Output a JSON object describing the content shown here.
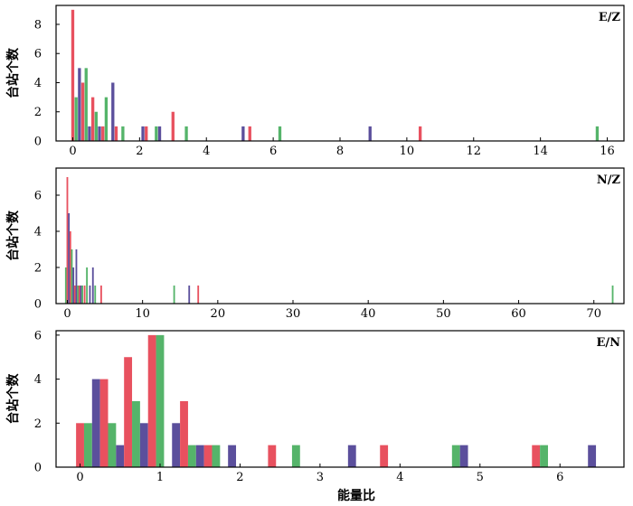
{
  "chart_data": {
    "type": "bar",
    "colors": {
      "red": "#E8515F",
      "green": "#55B46A",
      "purple": "#5B4F9C"
    },
    "shared_xlabel": "能量比",
    "panels": [
      {
        "id": "EZ",
        "tag": "E/Z",
        "ylabel": "台站个数",
        "xlim": [
          -0.5,
          16.5
        ],
        "ylim": [
          0,
          9.3
        ],
        "xticks": [
          0,
          2,
          4,
          6,
          8,
          10,
          12,
          14,
          16
        ],
        "yticks": [
          0,
          2,
          4,
          6,
          8
        ],
        "bar_width": 0.09,
        "bars": [
          {
            "x": 0.0,
            "y": 9,
            "series": "red"
          },
          {
            "x": 0.1,
            "y": 3,
            "series": "green"
          },
          {
            "x": 0.2,
            "y": 5,
            "series": "purple"
          },
          {
            "x": 0.3,
            "y": 4,
            "series": "red"
          },
          {
            "x": 0.4,
            "y": 5,
            "series": "green"
          },
          {
            "x": 0.5,
            "y": 1,
            "series": "purple"
          },
          {
            "x": 0.6,
            "y": 3,
            "series": "red"
          },
          {
            "x": 0.7,
            "y": 2,
            "series": "green"
          },
          {
            "x": 0.8,
            "y": 1,
            "series": "purple"
          },
          {
            "x": 0.9,
            "y": 1,
            "series": "red"
          },
          {
            "x": 1.0,
            "y": 3,
            "series": "green"
          },
          {
            "x": 1.2,
            "y": 4,
            "series": "purple"
          },
          {
            "x": 1.3,
            "y": 1,
            "series": "red"
          },
          {
            "x": 1.5,
            "y": 1,
            "series": "green"
          },
          {
            "x": 2.1,
            "y": 1,
            "series": "purple"
          },
          {
            "x": 2.2,
            "y": 1,
            "series": "red"
          },
          {
            "x": 2.5,
            "y": 1,
            "series": "green"
          },
          {
            "x": 2.6,
            "y": 1,
            "series": "purple"
          },
          {
            "x": 3.0,
            "y": 2,
            "series": "red"
          },
          {
            "x": 3.4,
            "y": 1,
            "series": "green"
          },
          {
            "x": 5.1,
            "y": 1,
            "series": "purple"
          },
          {
            "x": 5.3,
            "y": 1,
            "series": "red"
          },
          {
            "x": 6.2,
            "y": 1,
            "series": "green"
          },
          {
            "x": 8.9,
            "y": 1,
            "series": "purple"
          },
          {
            "x": 10.4,
            "y": 1,
            "series": "red"
          },
          {
            "x": 15.7,
            "y": 1,
            "series": "green"
          }
        ]
      },
      {
        "id": "NZ",
        "tag": "N/Z",
        "ylabel": "台站个数",
        "xlim": [
          -1.5,
          74
        ],
        "ylim": [
          0,
          7.5
        ],
        "xticks": [
          0,
          10,
          20,
          30,
          40,
          50,
          60,
          70
        ],
        "yticks": [
          0,
          2,
          4,
          6
        ],
        "bar_width": 0.22,
        "bars": [
          {
            "x": -0.2,
            "y": 2,
            "series": "green"
          },
          {
            "x": 0.0,
            "y": 7,
            "series": "red"
          },
          {
            "x": 0.2,
            "y": 5,
            "series": "purple"
          },
          {
            "x": 0.4,
            "y": 4,
            "series": "red"
          },
          {
            "x": 0.6,
            "y": 3,
            "series": "green"
          },
          {
            "x": 0.8,
            "y": 2,
            "series": "purple"
          },
          {
            "x": 1.0,
            "y": 1,
            "series": "red"
          },
          {
            "x": 1.2,
            "y": 3,
            "series": "purple"
          },
          {
            "x": 1.4,
            "y": 1,
            "series": "green"
          },
          {
            "x": 1.6,
            "y": 1,
            "series": "red"
          },
          {
            "x": 1.8,
            "y": 1,
            "series": "purple"
          },
          {
            "x": 2.0,
            "y": 1,
            "series": "green"
          },
          {
            "x": 2.3,
            "y": 1,
            "series": "red"
          },
          {
            "x": 2.6,
            "y": 2,
            "series": "green"
          },
          {
            "x": 3.0,
            "y": 1,
            "series": "purple"
          },
          {
            "x": 3.4,
            "y": 2,
            "series": "purple"
          },
          {
            "x": 3.7,
            "y": 1,
            "series": "green"
          },
          {
            "x": 4.5,
            "y": 1,
            "series": "red"
          },
          {
            "x": 14.2,
            "y": 1,
            "series": "green"
          },
          {
            "x": 16.2,
            "y": 1,
            "series": "purple"
          },
          {
            "x": 17.4,
            "y": 1,
            "series": "red"
          },
          {
            "x": 72.5,
            "y": 1,
            "series": "green"
          }
        ]
      },
      {
        "id": "EN",
        "tag": "E/N",
        "ylabel": "台站个数",
        "xlim": [
          -0.3,
          6.8
        ],
        "ylim": [
          0,
          6.2
        ],
        "xticks": [
          0,
          1,
          2,
          3,
          4,
          5,
          6
        ],
        "yticks": [
          0,
          2,
          4,
          6
        ],
        "bar_width": 0.1,
        "bars": [
          {
            "x": 0.0,
            "y": 2,
            "series": "red"
          },
          {
            "x": 0.1,
            "y": 2,
            "series": "green"
          },
          {
            "x": 0.2,
            "y": 4,
            "series": "purple"
          },
          {
            "x": 0.3,
            "y": 4,
            "series": "red"
          },
          {
            "x": 0.4,
            "y": 2,
            "series": "green"
          },
          {
            "x": 0.5,
            "y": 1,
            "series": "purple"
          },
          {
            "x": 0.6,
            "y": 5,
            "series": "red"
          },
          {
            "x": 0.7,
            "y": 3,
            "series": "green"
          },
          {
            "x": 0.8,
            "y": 2,
            "series": "purple"
          },
          {
            "x": 0.9,
            "y": 6,
            "series": "red"
          },
          {
            "x": 1.0,
            "y": 6,
            "series": "green"
          },
          {
            "x": 1.2,
            "y": 2,
            "series": "purple"
          },
          {
            "x": 1.3,
            "y": 3,
            "series": "red"
          },
          {
            "x": 1.4,
            "y": 1,
            "series": "green"
          },
          {
            "x": 1.5,
            "y": 1,
            "series": "purple"
          },
          {
            "x": 1.6,
            "y": 1,
            "series": "red"
          },
          {
            "x": 1.7,
            "y": 1,
            "series": "green"
          },
          {
            "x": 1.9,
            "y": 1,
            "series": "purple"
          },
          {
            "x": 2.4,
            "y": 1,
            "series": "red"
          },
          {
            "x": 2.7,
            "y": 1,
            "series": "green"
          },
          {
            "x": 3.4,
            "y": 1,
            "series": "purple"
          },
          {
            "x": 3.8,
            "y": 1,
            "series": "red"
          },
          {
            "x": 4.7,
            "y": 1,
            "series": "green"
          },
          {
            "x": 4.8,
            "y": 1,
            "series": "purple"
          },
          {
            "x": 5.7,
            "y": 1,
            "series": "red"
          },
          {
            "x": 5.8,
            "y": 1,
            "series": "green"
          },
          {
            "x": 6.4,
            "y": 1,
            "series": "purple"
          }
        ]
      }
    ]
  }
}
